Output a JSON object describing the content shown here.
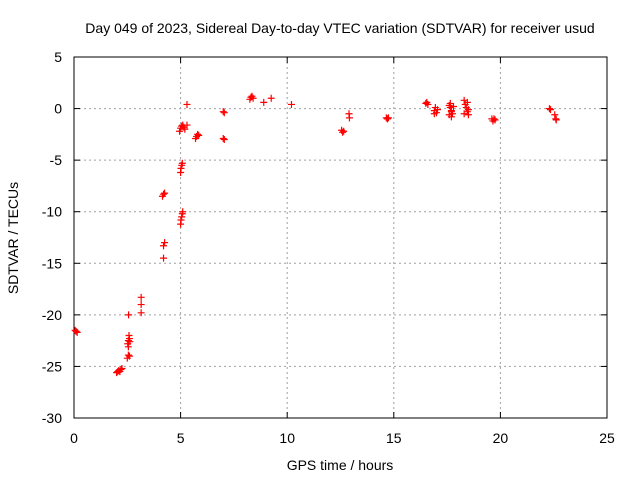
{
  "chart_data": {
    "type": "scatter",
    "title": "Day 049 of 2023, Sidereal Day-to-day VTEC variation (SDTVAR) for receiver usud",
    "xlabel": "GPS time / hours",
    "ylabel": "SDTVAR / TECUs",
    "xlim": [
      0,
      25
    ],
    "ylim": [
      -30,
      5
    ],
    "xticks": [
      0,
      5,
      10,
      15,
      20,
      25
    ],
    "yticks": [
      5,
      0,
      -5,
      -10,
      -15,
      -20,
      -25,
      -30
    ],
    "grid": true,
    "marker": "plus",
    "color": "#ff0000",
    "series": [
      {
        "name": "SDTVAR",
        "points": [
          [
            0.05,
            -21.5
          ],
          [
            0.1,
            -21.6
          ],
          [
            0.15,
            -21.7
          ],
          [
            2.0,
            -25.6
          ],
          [
            2.05,
            -25.5
          ],
          [
            2.1,
            -25.4
          ],
          [
            2.15,
            -25.5
          ],
          [
            2.2,
            -25.3
          ],
          [
            2.25,
            -25.2
          ],
          [
            2.5,
            -24.2
          ],
          [
            2.55,
            -23.9
          ],
          [
            2.6,
            -24.0
          ],
          [
            2.52,
            -22.8
          ],
          [
            2.55,
            -22.5
          ],
          [
            2.6,
            -22.3
          ],
          [
            2.58,
            -22.0
          ],
          [
            2.62,
            -22.6
          ],
          [
            2.55,
            -23.1
          ],
          [
            2.56,
            -20.0
          ],
          [
            3.15,
            -19.8
          ],
          [
            3.15,
            -19.0
          ],
          [
            3.15,
            -18.3
          ],
          [
            4.2,
            -14.5
          ],
          [
            4.2,
            -13.3
          ],
          [
            4.25,
            -13.0
          ],
          [
            4.15,
            -8.5
          ],
          [
            4.2,
            -8.3
          ],
          [
            4.25,
            -8.2
          ],
          [
            5.0,
            -11.2
          ],
          [
            5.02,
            -10.8
          ],
          [
            5.05,
            -10.5
          ],
          [
            5.08,
            -10.2
          ],
          [
            5.1,
            -10.0
          ],
          [
            5.0,
            -6.2
          ],
          [
            5.02,
            -5.8
          ],
          [
            5.05,
            -5.5
          ],
          [
            5.08,
            -5.3
          ],
          [
            4.95,
            -2.2
          ],
          [
            5.0,
            -1.9
          ],
          [
            5.05,
            -1.7
          ],
          [
            5.1,
            -1.6
          ],
          [
            5.15,
            -1.8
          ],
          [
            5.2,
            -2.0
          ],
          [
            5.3,
            -1.6
          ],
          [
            5.3,
            0.4
          ],
          [
            5.7,
            -2.9
          ],
          [
            5.75,
            -2.7
          ],
          [
            5.8,
            -2.5
          ],
          [
            5.85,
            -2.6
          ],
          [
            7.0,
            -0.3
          ],
          [
            7.05,
            -0.4
          ],
          [
            7.0,
            -2.9
          ],
          [
            7.05,
            -3.0
          ],
          [
            8.25,
            0.9
          ],
          [
            8.3,
            1.1
          ],
          [
            8.35,
            1.2
          ],
          [
            8.4,
            1.0
          ],
          [
            8.9,
            0.6
          ],
          [
            9.25,
            1.0
          ],
          [
            10.2,
            0.4
          ],
          [
            12.55,
            -2.1
          ],
          [
            12.6,
            -2.3
          ],
          [
            12.65,
            -2.2
          ],
          [
            12.9,
            -0.5
          ],
          [
            12.92,
            -0.9
          ],
          [
            14.65,
            -0.9
          ],
          [
            14.7,
            -1.0
          ],
          [
            14.75,
            -0.9
          ],
          [
            16.5,
            0.5
          ],
          [
            16.55,
            0.6
          ],
          [
            16.6,
            0.4
          ],
          [
            16.9,
            -0.2
          ],
          [
            16.95,
            0.1
          ],
          [
            17.0,
            -0.4
          ],
          [
            17.05,
            -0.1
          ],
          [
            16.9,
            -0.5
          ],
          [
            17.6,
            0.3
          ],
          [
            17.65,
            0.1
          ],
          [
            17.7,
            -0.2
          ],
          [
            17.75,
            -0.5
          ],
          [
            17.6,
            -0.6
          ],
          [
            17.65,
            0.5
          ],
          [
            17.7,
            -0.3
          ],
          [
            17.8,
            0.2
          ],
          [
            17.7,
            -0.8
          ],
          [
            18.3,
            0.8
          ],
          [
            18.35,
            0.4
          ],
          [
            18.4,
            0.1
          ],
          [
            18.45,
            -0.3
          ],
          [
            18.5,
            -0.6
          ],
          [
            18.3,
            -0.5
          ],
          [
            18.45,
            0.6
          ],
          [
            18.5,
            -0.1
          ],
          [
            19.6,
            -1.0
          ],
          [
            19.65,
            -1.2
          ],
          [
            19.7,
            -1.0
          ],
          [
            19.75,
            -1.1
          ],
          [
            22.3,
            0.0
          ],
          [
            22.35,
            -0.1
          ],
          [
            22.55,
            -0.6
          ],
          [
            22.6,
            -1.0
          ],
          [
            22.62,
            -1.1
          ]
        ]
      }
    ]
  }
}
